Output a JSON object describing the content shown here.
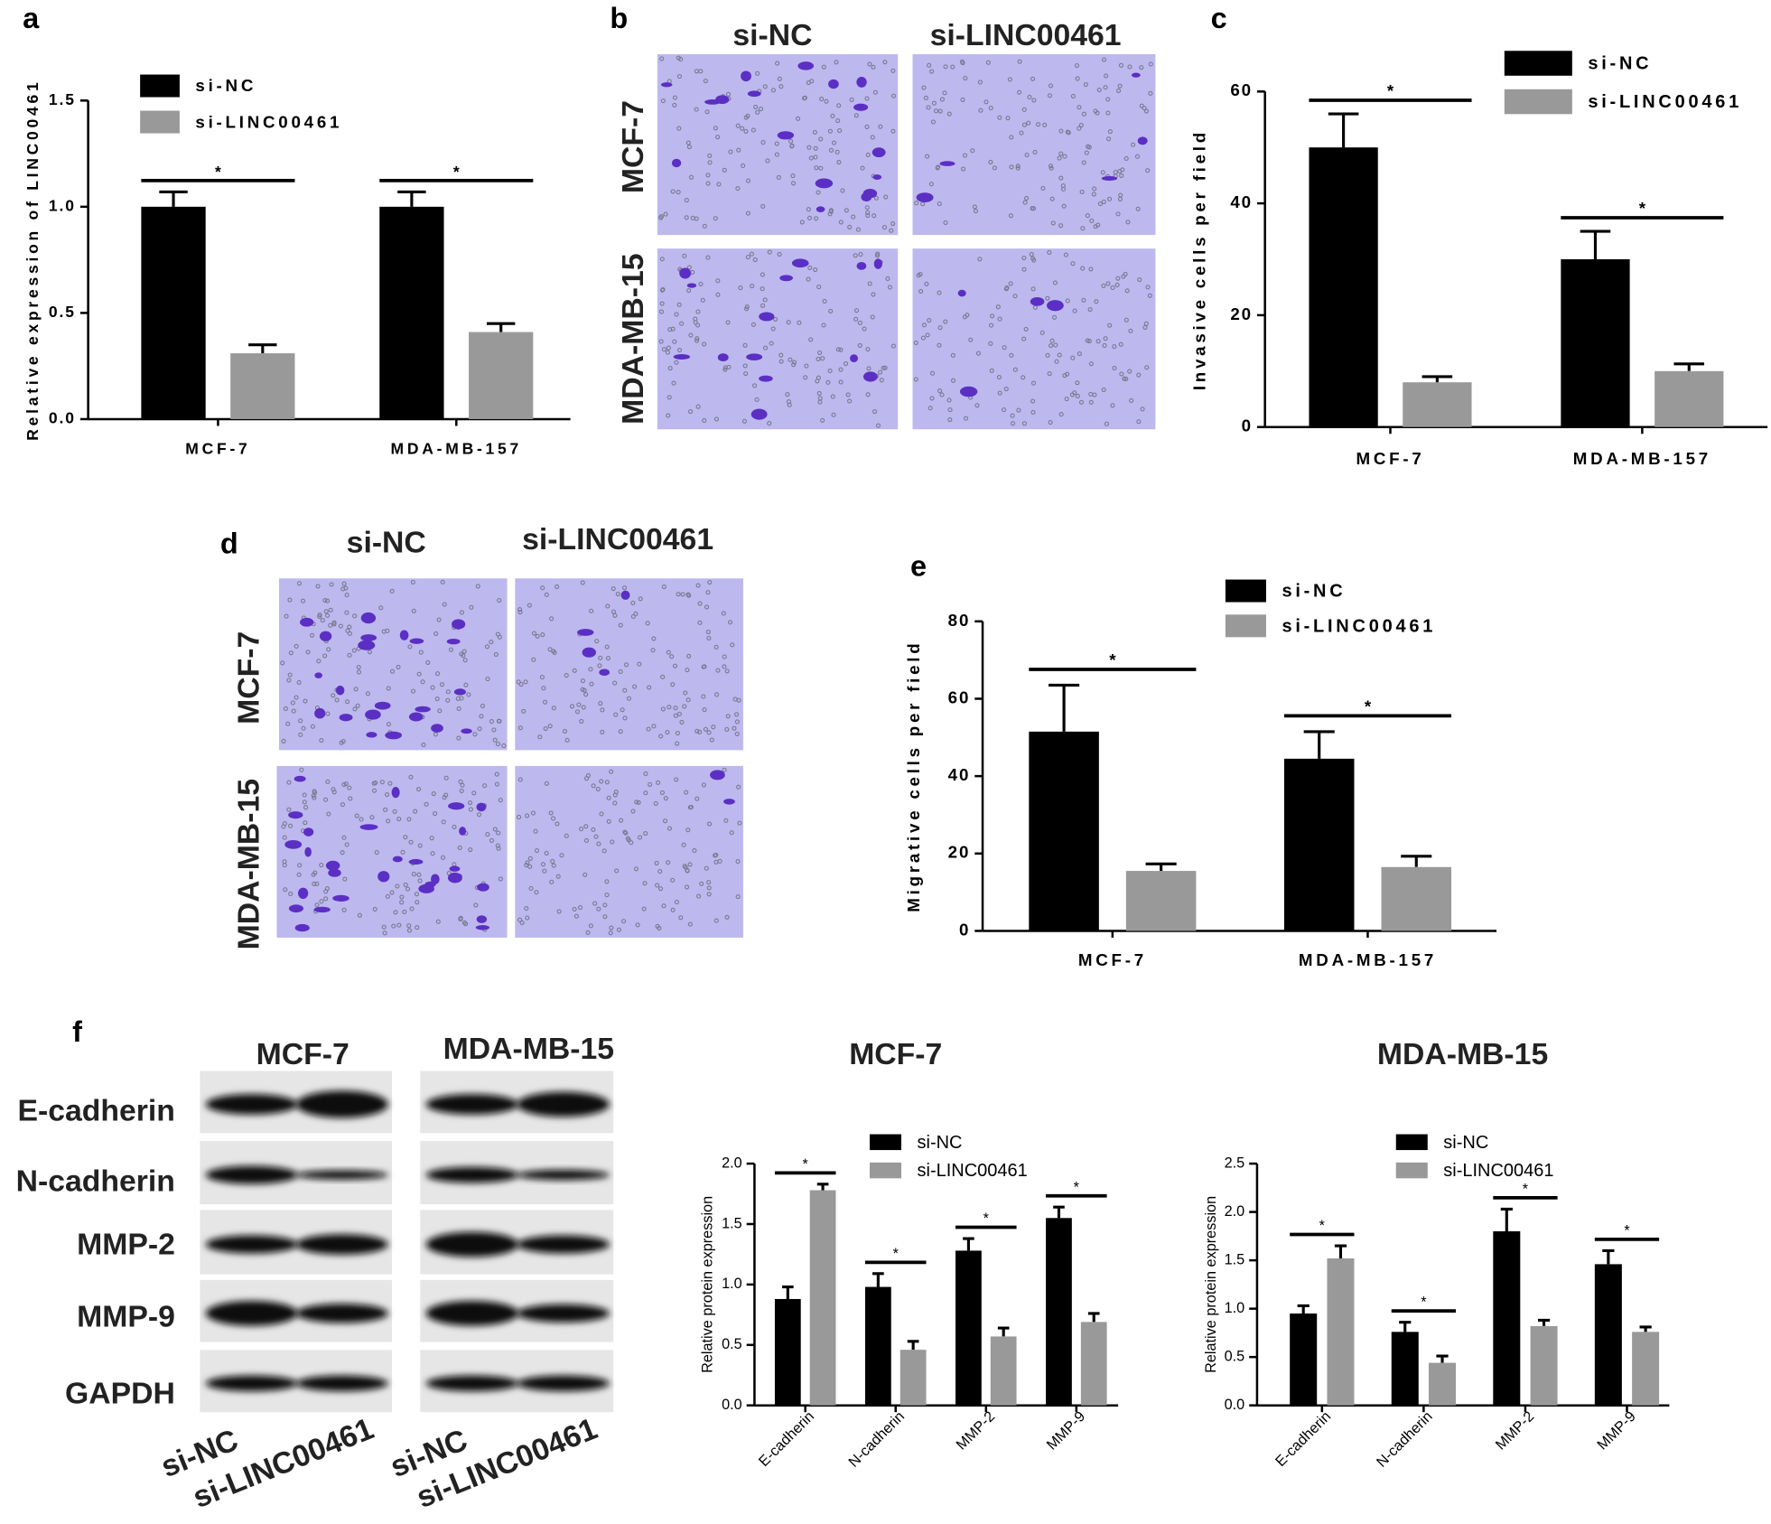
{
  "panel_labels": [
    "a",
    "b",
    "c",
    "d",
    "e",
    "f"
  ],
  "transwell_invasion": {
    "columns": [
      "si-NC",
      "si-LINC00461"
    ],
    "rows": [
      "MCF-7",
      "MDA-MB-15"
    ]
  },
  "transwell_migration": {
    "columns": [
      "si-NC",
      "si-LINC00461"
    ],
    "rows": [
      "MCF-7",
      "MDA-MB-15"
    ]
  },
  "western_blot": {
    "columns": [
      "MCF-7",
      "MDA-MB-15"
    ],
    "proteins": [
      "E-cadherin",
      "N-cadherin",
      "MMP-2",
      "MMP-9",
      "GAPDH"
    ],
    "lanes": [
      "si-NC",
      "si-LINC00461",
      "si-NC",
      "si-LINC00461"
    ]
  },
  "chart_data": [
    {
      "type": "bar",
      "y_label": "Relative expression of LINC00461",
      "categories": [
        "MCF-7",
        "MDA-MB-157"
      ],
      "series": [
        {
          "name": "si-NC",
          "color": "#000000",
          "values": [
            1.0,
            1.0
          ],
          "errors": [
            0.07,
            0.07
          ]
        },
        {
          "name": "si-LINC00461",
          "color": "#999999",
          "values": [
            0.31,
            0.41
          ],
          "errors": [
            0.04,
            0.04
          ]
        }
      ],
      "ylim": [
        0,
        1.5
      ],
      "yticks": [
        {
          "value": 0,
          "label": "0.0"
        },
        0.5,
        {
          "value": 1,
          "label": "1.0"
        },
        1.5
      ],
      "annotations": [
        "*",
        "*"
      ]
    },
    {
      "type": "bar",
      "y_label": "Invasive cells per field",
      "categories": [
        "MCF-7",
        "MDA-MB-157"
      ],
      "series": [
        {
          "name": "si-NC",
          "color": "#000000",
          "values": [
            50,
            30
          ],
          "errors": [
            6,
            5
          ]
        },
        {
          "name": "si-LINC00461",
          "color": "#999999",
          "values": [
            8,
            10
          ],
          "errors": [
            1,
            1.3
          ]
        }
      ],
      "ylim": [
        0,
        60
      ],
      "yticks": [
        0,
        20,
        40,
        60
      ],
      "annotations": [
        "*",
        "*"
      ]
    },
    {
      "type": "bar",
      "y_label": "Migrative cells per field",
      "categories": [
        "MCF-7",
        "MDA-MB-157"
      ],
      "series": [
        {
          "name": "si-NC",
          "color": "#000000",
          "values": [
            51.5,
            44.5
          ],
          "errors": [
            12,
            7
          ]
        },
        {
          "name": "si-LINC00461",
          "color": "#999999",
          "values": [
            15.5,
            16.5
          ],
          "errors": [
            1.8,
            2.8
          ]
        }
      ],
      "ylim": [
        0,
        80
      ],
      "yticks": [
        0,
        20,
        40,
        60,
        80
      ],
      "annotations": [
        "*",
        "*"
      ]
    },
    {
      "type": "bar",
      "title": "MCF-7",
      "y_label": "Relative protein expression",
      "categories": [
        "E-cadherin",
        "N-cadherin",
        "MMP-2",
        "MMP-9"
      ],
      "series": [
        {
          "name": "si-NC",
          "color": "#000000",
          "values": [
            0.88,
            0.98,
            1.28,
            1.55
          ],
          "errors": [
            0.1,
            0.11,
            0.1,
            0.09
          ]
        },
        {
          "name": "si-LINC00461",
          "color": "#999999",
          "values": [
            1.78,
            0.46,
            0.57,
            0.69
          ],
          "errors": [
            0.05,
            0.07,
            0.07,
            0.07
          ]
        }
      ],
      "ylim": [
        0,
        2
      ],
      "yticks": [
        {
          "value": 0,
          "label": "0.0"
        },
        0.5,
        {
          "value": 1,
          "label": "1.0"
        },
        1.5,
        {
          "value": 2,
          "label": "2.0"
        }
      ],
      "annotations": [
        "*",
        "*",
        "*",
        "*"
      ]
    },
    {
      "type": "bar",
      "title": "MDA-MB-15",
      "y_label": "Relative protein expression",
      "categories": [
        "E-cadherin",
        "N-cadherin",
        "MMP-2",
        "MMP-9"
      ],
      "series": [
        {
          "name": "si-NC",
          "color": "#000000",
          "values": [
            0.95,
            0.76,
            1.8,
            1.46
          ],
          "errors": [
            0.08,
            0.1,
            0.23,
            0.14
          ]
        },
        {
          "name": "si-LINC00461",
          "color": "#999999",
          "values": [
            1.52,
            0.44,
            0.82,
            0.76
          ],
          "errors": [
            0.13,
            0.07,
            0.06,
            0.05
          ]
        }
      ],
      "ylim": [
        0,
        2.5
      ],
      "yticks": [
        {
          "value": 0,
          "label": "0.0"
        },
        0.5,
        {
          "value": 1,
          "label": "1.0"
        },
        1.5,
        {
          "value": 2,
          "label": "2.0"
        },
        2.5
      ],
      "annotations": [
        "*",
        "*",
        "*",
        "*"
      ]
    }
  ]
}
